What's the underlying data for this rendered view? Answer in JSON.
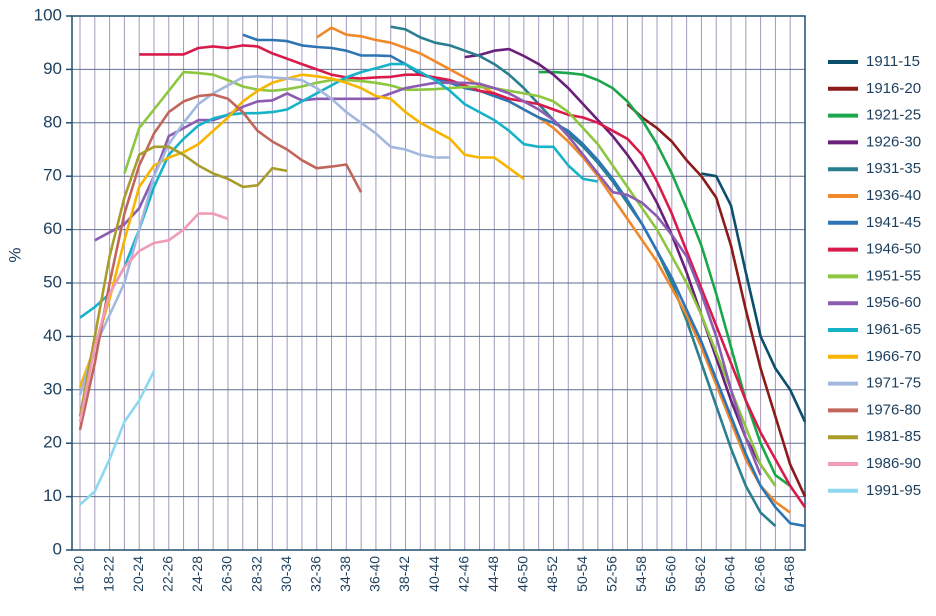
{
  "chart_data": {
    "type": "line",
    "y_label": "%",
    "ylim": [
      0,
      100
    ],
    "yticks": [
      0,
      10,
      20,
      30,
      40,
      50,
      60,
      70,
      80,
      90,
      100
    ],
    "grid": true,
    "legend": "right",
    "categories": [
      "16-20",
      null,
      "18-22",
      null,
      "20-24",
      null,
      "22-26",
      null,
      "24-28",
      null,
      "26-30",
      null,
      "28-32",
      null,
      "30-34",
      null,
      "32-36",
      null,
      "34-38",
      null,
      "36-40",
      null,
      "38-42",
      null,
      "40-44",
      null,
      "42-46",
      null,
      "44-48",
      null,
      "46-50",
      null,
      "48-52",
      null,
      "50-54",
      null,
      "52-56",
      null,
      "54-58",
      null,
      "56-60",
      null,
      "58-62",
      null,
      "60-64",
      null,
      "62-66",
      null,
      "64-68",
      null
    ],
    "series": [
      {
        "name": "1911-15",
        "color": "#0b4f6c",
        "values": [
          null,
          null,
          null,
          null,
          null,
          null,
          null,
          null,
          null,
          null,
          null,
          null,
          null,
          null,
          null,
          null,
          null,
          null,
          null,
          null,
          null,
          null,
          null,
          null,
          null,
          null,
          null,
          null,
          null,
          null,
          null,
          null,
          null,
          null,
          null,
          null,
          null,
          null,
          null,
          null,
          null,
          null,
          70.5,
          70,
          64.5,
          52,
          40,
          34,
          30,
          24
        ]
      },
      {
        "name": "1916-20",
        "color": "#8b1a1a",
        "values": [
          null,
          null,
          null,
          null,
          null,
          null,
          null,
          null,
          null,
          null,
          null,
          null,
          null,
          null,
          null,
          null,
          null,
          null,
          null,
          null,
          null,
          null,
          null,
          null,
          null,
          null,
          null,
          null,
          null,
          null,
          null,
          null,
          null,
          null,
          null,
          null,
          null,
          83.5,
          81,
          79,
          76.5,
          73,
          70,
          66,
          57,
          45,
          34,
          25,
          16,
          10
        ]
      },
      {
        "name": "1921-25",
        "color": "#1aa64a",
        "values": [
          null,
          null,
          null,
          null,
          null,
          null,
          null,
          null,
          null,
          null,
          null,
          null,
          null,
          null,
          null,
          null,
          null,
          null,
          null,
          null,
          null,
          null,
          null,
          null,
          null,
          null,
          null,
          null,
          null,
          null,
          null,
          89.5,
          89.5,
          89.3,
          89,
          88,
          86.5,
          84,
          80.5,
          76,
          70.5,
          64,
          57,
          48,
          38,
          28,
          20,
          14,
          12,
          null
        ]
      },
      {
        "name": "1926-30",
        "color": "#6a1f7a",
        "values": [
          null,
          null,
          null,
          null,
          null,
          null,
          null,
          null,
          null,
          null,
          null,
          null,
          null,
          null,
          null,
          null,
          null,
          null,
          null,
          null,
          null,
          null,
          null,
          null,
          null,
          null,
          92.3,
          92.7,
          93.5,
          93.8,
          92.5,
          91,
          89,
          86.5,
          83.5,
          80.5,
          77.5,
          74,
          70,
          65,
          59,
          52,
          44,
          36,
          28,
          21,
          16,
          12,
          null,
          null
        ]
      },
      {
        "name": "1931-35",
        "color": "#2a7f8f",
        "values": [
          null,
          null,
          null,
          null,
          null,
          null,
          null,
          null,
          null,
          null,
          null,
          null,
          null,
          null,
          null,
          null,
          null,
          null,
          null,
          null,
          null,
          98,
          97.5,
          96,
          95,
          94.5,
          93.5,
          92.5,
          91,
          89,
          86.5,
          83.5,
          80.5,
          78,
          75.5,
          72.5,
          69,
          65,
          61,
          56,
          50,
          43,
          35,
          27,
          19,
          12,
          7,
          4.5,
          null,
          null
        ]
      },
      {
        "name": "1936-40",
        "color": "#f0892a",
        "values": [
          null,
          null,
          null,
          null,
          null,
          null,
          null,
          null,
          null,
          null,
          null,
          null,
          null,
          null,
          null,
          null,
          96,
          97.8,
          96.5,
          96.2,
          95.5,
          95,
          94,
          93,
          91.5,
          90,
          88.5,
          87,
          85.5,
          84,
          82.5,
          81,
          79,
          76.5,
          73.5,
          70,
          66,
          62,
          58,
          54,
          49,
          44,
          38,
          31,
          24,
          17,
          12,
          9,
          7,
          null
        ]
      },
      {
        "name": "1941-45",
        "color": "#2e75b6",
        "values": [
          null,
          null,
          null,
          null,
          null,
          null,
          null,
          null,
          null,
          null,
          null,
          96.5,
          95.5,
          95.5,
          95.3,
          94.5,
          94.2,
          94,
          93.5,
          92.6,
          92.6,
          92.5,
          91,
          89,
          88.3,
          87.5,
          86.5,
          86,
          85,
          84,
          82.5,
          81,
          80,
          78.5,
          76,
          73,
          69.5,
          65.5,
          61,
          56,
          51,
          45,
          39,
          32,
          25,
          18,
          12,
          8,
          5,
          4.5
        ]
      },
      {
        "name": "1946-50",
        "color": "#d81b4a",
        "values": [
          null,
          null,
          null,
          null,
          92.8,
          92.8,
          92.8,
          92.8,
          94,
          94.3,
          94,
          94.5,
          94.3,
          93,
          92,
          91,
          90,
          89,
          88.5,
          88.3,
          88.5,
          88.6,
          89,
          89,
          88.5,
          88,
          87,
          86,
          85.5,
          84.5,
          84,
          83.5,
          82.5,
          81.5,
          81,
          80,
          78.5,
          77,
          74,
          69,
          63,
          56,
          49,
          42,
          35,
          28,
          22,
          17,
          12,
          8
        ]
      },
      {
        "name": "1951-55",
        "color": "#8dc63f",
        "values": [
          null,
          null,
          null,
          70.5,
          79,
          82.5,
          86,
          89.5,
          89.3,
          89,
          88,
          86.8,
          86.2,
          86,
          86.3,
          86.8,
          87.5,
          88,
          88,
          87.8,
          87.5,
          87,
          86.2,
          86.2,
          86.3,
          86.5,
          86.7,
          86.7,
          86.5,
          86,
          85.5,
          85,
          84,
          82,
          79,
          76,
          72,
          68,
          64,
          60,
          55,
          50,
          44,
          37,
          30,
          23,
          16,
          12,
          null,
          null
        ]
      },
      {
        "name": "1956-60",
        "color": "#8c5cb0",
        "values": [
          null,
          58,
          59.5,
          61,
          64,
          70,
          77.5,
          79,
          80.5,
          80.5,
          81.5,
          83,
          84,
          84.2,
          85.5,
          84.2,
          84.5,
          84.5,
          84.5,
          84.5,
          84.5,
          85.5,
          86.5,
          87,
          87.5,
          87.5,
          87.5,
          87.3,
          86.5,
          85.5,
          84,
          82.5,
          80.5,
          77.5,
          74,
          70.5,
          67,
          66.5,
          65,
          62.5,
          59,
          55,
          48,
          40,
          30,
          21,
          14,
          null,
          null,
          null
        ]
      },
      {
        "name": "1961-65",
        "color": "#16b3c8",
        "values": [
          43.5,
          45.5,
          48,
          53,
          60,
          68,
          74,
          77,
          79.5,
          80.8,
          81.5,
          81.8,
          81.8,
          82,
          82.5,
          84,
          85.5,
          87,
          88.5,
          89.5,
          90.2,
          91,
          91,
          89.5,
          88,
          86,
          83.5,
          82,
          80.5,
          78.5,
          76,
          75.5,
          75.5,
          72,
          69.5,
          69,
          null,
          null,
          null,
          null,
          null,
          null,
          null,
          null,
          null,
          null,
          null,
          null,
          null,
          null
        ]
      },
      {
        "name": "1966-70",
        "color": "#f7b500",
        "values": [
          30.5,
          38,
          47,
          58,
          68,
          72,
          73.5,
          74.5,
          76,
          78.5,
          81,
          84,
          86,
          87.5,
          88.3,
          89,
          88.7,
          88.3,
          87.5,
          86.5,
          85,
          84.5,
          82,
          80,
          78.5,
          77,
          74,
          73.5,
          73.5,
          71.5,
          69.5,
          null,
          null,
          null,
          null,
          null,
          null,
          null,
          null,
          null,
          null,
          null,
          null,
          null,
          null,
          null,
          null,
          null,
          null,
          null
        ]
      },
      {
        "name": "1971-75",
        "color": "#a3b8de",
        "values": [
          29,
          38,
          44,
          50,
          60,
          70,
          76,
          80,
          83.5,
          85.5,
          87,
          88.5,
          88.7,
          88.5,
          88.3,
          88,
          86.5,
          84.5,
          82,
          80,
          78,
          75.5,
          75,
          74,
          73.5,
          73.5,
          null,
          null,
          null,
          null,
          null,
          null,
          null,
          null,
          null,
          null,
          null,
          null,
          null,
          null,
          null,
          null,
          null,
          null,
          null,
          null,
          null,
          null,
          null,
          null
        ]
      },
      {
        "name": "1976-80",
        "color": "#c0665a",
        "values": [
          22.5,
          35,
          50,
          63,
          72,
          78,
          82,
          84,
          85,
          85.3,
          84.5,
          82,
          78.5,
          76.5,
          75,
          73,
          71.5,
          71.8,
          72.2,
          67,
          null,
          null,
          null,
          null,
          null,
          null,
          null,
          null,
          null,
          null,
          null,
          null,
          null,
          null,
          null,
          null,
          null,
          null,
          null,
          null,
          null,
          null,
          null,
          null,
          null,
          null,
          null,
          null,
          null,
          null
        ]
      },
      {
        "name": "1981-85",
        "color": "#a89c2a",
        "values": [
          25,
          40,
          55,
          66,
          74,
          75.5,
          75.5,
          74,
          72,
          70.5,
          69.5,
          68,
          68.3,
          71.5,
          71,
          null,
          null,
          null,
          null,
          null,
          null,
          null,
          null,
          null,
          null,
          null,
          null,
          null,
          null,
          null,
          null,
          null,
          null,
          null,
          null,
          null,
          null,
          null,
          null,
          null,
          null,
          null,
          null,
          null,
          null,
          null,
          null,
          null,
          null,
          null
        ]
      },
      {
        "name": "1986-90",
        "color": "#f29bb5",
        "values": [
          24,
          38,
          48,
          53,
          56,
          57.5,
          58,
          60,
          63,
          63,
          62,
          null,
          null,
          null,
          null,
          null,
          null,
          null,
          null,
          null,
          null,
          null,
          null,
          null,
          null,
          null,
          null,
          null,
          null,
          null,
          null,
          null,
          null,
          null,
          null,
          null,
          null,
          null,
          null,
          null,
          null,
          null,
          null,
          null,
          null,
          null,
          null,
          null,
          null,
          null
        ]
      },
      {
        "name": "1991-95",
        "color": "#8dd8f0",
        "values": [
          8.5,
          11,
          17,
          24,
          28,
          33.5,
          null,
          null,
          null,
          null,
          null,
          null,
          null,
          null,
          null,
          null,
          null,
          null,
          null,
          null,
          null,
          null,
          null,
          null,
          null,
          null,
          null,
          null,
          null,
          null,
          null,
          null,
          null,
          null,
          null,
          null,
          null,
          null,
          null,
          null,
          null,
          null,
          null,
          null,
          null,
          null,
          null,
          null,
          null,
          null
        ]
      }
    ]
  }
}
